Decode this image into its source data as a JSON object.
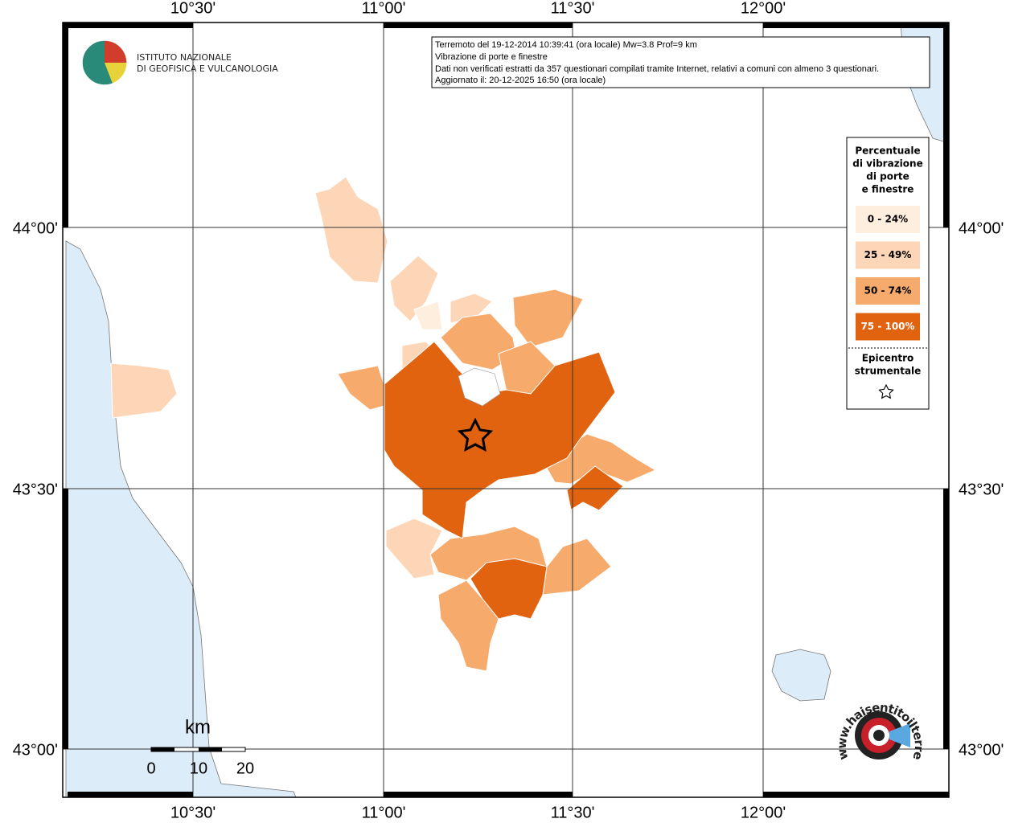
{
  "map": {
    "lon_labels": [
      "10°30'",
      "11°00'",
      "11°30'",
      "12°00'"
    ],
    "lat_labels": [
      "44°00'",
      "43°30'",
      "43°00'"
    ],
    "info": [
      "Terremoto del 19-12-2014 10:39:41 (ora locale) Mw=3.8 Prof=9 km",
      "Vibrazione di porte e finestre",
      "Dati non verificati estratti da 357 questionari compilati tramite Internet, relativi a comuni con almeno 3 questionari.",
      "Aggiornato il: 20-12-2025 16:50 (ora locale)"
    ],
    "logo": [
      "ISTITUTO NAZIONALE",
      "DI GEOFISICA E VULCANOLOGIA"
    ],
    "legend": {
      "title": [
        "Percentuale",
        "di vibrazione",
        "di porte",
        "e finestre"
      ],
      "classes": [
        {
          "label": "0 - 24%",
          "color": "#fdeedd"
        },
        {
          "label": "25 - 49%",
          "color": "#fdd6b7"
        },
        {
          "label": "50 - 74%",
          "color": "#f6aa6c"
        },
        {
          "label": "75 - 100%",
          "color": "#e1630f"
        }
      ],
      "epicenter": [
        "Epicentro",
        "strumentale"
      ]
    },
    "scale": {
      "unit": "km",
      "labels": [
        "0",
        "10",
        "20"
      ]
    },
    "watermark": "www.haisentitoilterremoto.it"
  }
}
